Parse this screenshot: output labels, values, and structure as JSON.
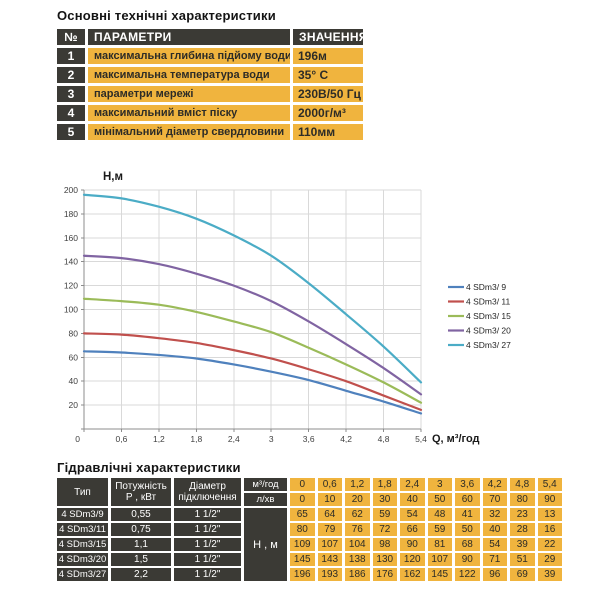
{
  "tech": {
    "title": "Основні технічні характеристики",
    "headers": [
      "№",
      "ПАРАМЕТРИ",
      "ЗНАЧЕННЯ"
    ],
    "rows": [
      {
        "num": "1",
        "param": "максимальна глибина підйому води",
        "value": "196м"
      },
      {
        "num": "2",
        "param": "максимальна температура води",
        "value": "35° С"
      },
      {
        "num": "3",
        "param": "параметри мережі",
        "value": "230В/50 Гц"
      },
      {
        "num": "4",
        "param": "максимальний вміст піску",
        "value": "2000г/м³"
      },
      {
        "num": "5",
        "param": "мінімальний діаметр свердловини",
        "value": "110мм"
      }
    ]
  },
  "chart_data": {
    "type": "line",
    "title": "",
    "xlabel": "Q,  м³/год",
    "ylabel": "Н,м",
    "x": [
      0,
      0.6,
      1.2,
      1.8,
      2.4,
      3,
      3.6,
      4.2,
      4.8,
      5.4
    ],
    "x_tick_labels": [
      "0",
      "0,6",
      "1,2",
      "1,8",
      "2,4",
      "3",
      "3,6",
      "4,2",
      "4,8",
      "5,4"
    ],
    "ylim": [
      0,
      200
    ],
    "y_tick_step": 20,
    "grid": true,
    "legend_position": "right",
    "series": [
      {
        "name": "4 SDm3/ 9",
        "color": "#4F81BD",
        "values": [
          65,
          64,
          62,
          59,
          54,
          48,
          41,
          32,
          23,
          13
        ]
      },
      {
        "name": "4 SDm3/ 11",
        "color": "#C0504D",
        "values": [
          80,
          79,
          76,
          72,
          66,
          59,
          50,
          40,
          28,
          16
        ]
      },
      {
        "name": "4 SDm3/ 15",
        "color": "#9BBB59",
        "values": [
          109,
          107,
          104,
          98,
          90,
          81,
          68,
          54,
          39,
          22
        ]
      },
      {
        "name": "4 SDm3/ 20",
        "color": "#8064A2",
        "values": [
          145,
          143,
          138,
          130,
          120,
          107,
          90,
          71,
          51,
          29
        ]
      },
      {
        "name": "4 SDm3/ 27",
        "color": "#4BACC6",
        "values": [
          196,
          193,
          186,
          176,
          162,
          145,
          122,
          96,
          69,
          39
        ]
      }
    ]
  },
  "hydraulic": {
    "title": "Гідравлічні характеристики",
    "headers": {
      "type": "Тип",
      "power_line1": "Потужність",
      "power_line2": "Р , кВт",
      "diameter_line1": "Діаметр",
      "diameter_line2": "підключення",
      "flow_m3": "м³/год",
      "flow_l": "л/хв",
      "head": "Н , м"
    },
    "flow_m3_values": [
      "0",
      "0,6",
      "1,2",
      "1,8",
      "2,4",
      "3",
      "3,6",
      "4,2",
      "4,8",
      "5,4"
    ],
    "flow_l_values": [
      "0",
      "10",
      "20",
      "30",
      "40",
      "50",
      "60",
      "70",
      "80",
      "90"
    ],
    "rows": [
      {
        "type": "4 SDm3/9",
        "power": "0,55",
        "diameter": "1 1/2\"",
        "heads": [
          "65",
          "64",
          "62",
          "59",
          "54",
          "48",
          "41",
          "32",
          "23",
          "13"
        ]
      },
      {
        "type": "4 SDm3/11",
        "power": "0,75",
        "diameter": "1 1/2\"",
        "heads": [
          "80",
          "79",
          "76",
          "72",
          "66",
          "59",
          "50",
          "40",
          "28",
          "16"
        ]
      },
      {
        "type": "4 SDm3/15",
        "power": "1,1",
        "diameter": "1 1/2\"",
        "heads": [
          "109",
          "107",
          "104",
          "98",
          "90",
          "81",
          "68",
          "54",
          "39",
          "22"
        ]
      },
      {
        "type": "4 SDm3/20",
        "power": "1,5",
        "diameter": "1 1/2\"",
        "heads": [
          "145",
          "143",
          "138",
          "130",
          "120",
          "107",
          "90",
          "71",
          "51",
          "29"
        ]
      },
      {
        "type": "4 SDm3/27",
        "power": "2,2",
        "diameter": "1 1/2\"",
        "heads": [
          "196",
          "193",
          "186",
          "176",
          "162",
          "145",
          "122",
          "96",
          "69",
          "39"
        ]
      }
    ]
  },
  "colors": {
    "dark_cell": "#3B3A35",
    "yellow_cell": "#F0B43E",
    "gridline": "#D9D9D9",
    "axis": "#8C8C8C",
    "tick_text": "#3F3F3F"
  }
}
